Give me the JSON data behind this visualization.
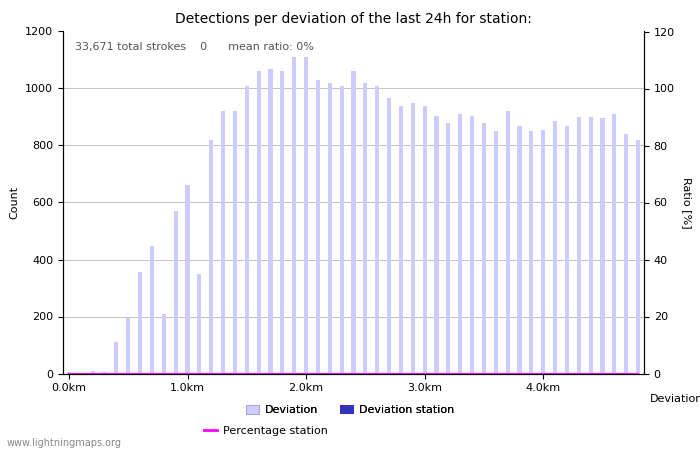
{
  "title": "Detections per deviation of the last 24h for station:",
  "annotation": "33,671 total strokes    0      mean ratio: 0%",
  "xlabel": "Deviations",
  "ylabel_left": "Count",
  "ylabel_right": "Ratio [%]",
  "ylim_left": [
    0,
    1200
  ],
  "ylim_right": [
    0,
    120
  ],
  "yticks_left": [
    0,
    200,
    400,
    600,
    800,
    1000,
    1200
  ],
  "yticks_right": [
    0,
    20,
    40,
    60,
    80,
    100,
    120
  ],
  "xtick_labels": [
    "0.0km",
    "1.0km",
    "2.0km",
    "3.0km",
    "4.0km"
  ],
  "xtick_positions": [
    0,
    10,
    20,
    30,
    40
  ],
  "bar_color": "#ccccff",
  "bar_station_color": "#3333bb",
  "bar_width": 0.35,
  "deviation_values": [
    5,
    0,
    10,
    5,
    110,
    200,
    355,
    447,
    210,
    570,
    660,
    350,
    820,
    920,
    920,
    1010,
    1060,
    1070,
    1060,
    1110,
    1110,
    1030,
    1020,
    1010,
    1060,
    1020,
    1010,
    965,
    940,
    950,
    940,
    905,
    880,
    910,
    905,
    880,
    850,
    920,
    870,
    850,
    855,
    885,
    870,
    900,
    900,
    895,
    910,
    840,
    820
  ],
  "station_values": [
    0,
    0,
    0,
    0,
    0,
    0,
    0,
    0,
    0,
    0,
    0,
    0,
    0,
    0,
    0,
    0,
    0,
    0,
    0,
    0,
    0,
    0,
    0,
    0,
    0,
    0,
    0,
    0,
    0,
    0,
    0,
    0,
    0,
    0,
    0,
    0,
    0,
    0,
    0,
    0,
    0,
    0,
    0,
    0,
    0,
    0,
    0,
    0,
    0
  ],
  "percentage_values": [
    0,
    0,
    0,
    0,
    0,
    0,
    0,
    0,
    0,
    0,
    0,
    0,
    0,
    0,
    0,
    0,
    0,
    0,
    0,
    0,
    0,
    0,
    0,
    0,
    0,
    0,
    0,
    0,
    0,
    0,
    0,
    0,
    0,
    0,
    0,
    0,
    0,
    0,
    0,
    0,
    0,
    0,
    0,
    0,
    0,
    0,
    0,
    0,
    0
  ],
  "grid_color": "#aaaaaa",
  "bg_color": "#ffffff",
  "title_fontsize": 10,
  "label_fontsize": 8,
  "tick_fontsize": 8,
  "annotation_fontsize": 8,
  "watermark": "www.lightningmaps.org",
  "watermark_fontsize": 7,
  "legend_row1": [
    "Deviation",
    "Deviation station"
  ],
  "legend_row2": [
    "Percentage station"
  ]
}
